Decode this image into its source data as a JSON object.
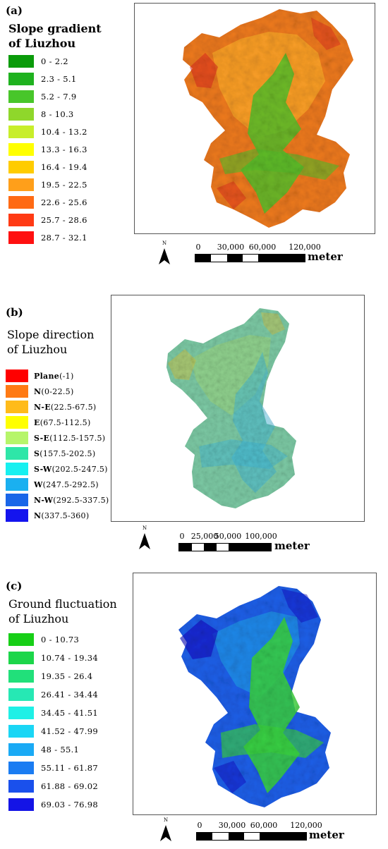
{
  "panels": [
    {
      "label": "(a)",
      "title_line1": "Slope gradient",
      "title_line2": "of Liuzhou",
      "legend": [
        {
          "text": "0 - 2.2",
          "color": "#0a9b0a"
        },
        {
          "text": "2.3 - 5.1",
          "color": "#1fb21f"
        },
        {
          "text": "5.2 - 7.9",
          "color": "#48c62a"
        },
        {
          "text": "8 - 10.3",
          "color": "#8fd72b"
        },
        {
          "text": "10.4 - 13.2",
          "color": "#c8ee2a"
        },
        {
          "text": "13.3 - 16.3",
          "color": "#ffff00"
        },
        {
          "text": "16.4 - 19.4",
          "color": "#ffcc00"
        },
        {
          "text": "19.5 - 22.5",
          "color": "#ff9f1a"
        },
        {
          "text": "22.6 - 25.6",
          "color": "#ff6a14"
        },
        {
          "text": "25.7 - 28.6",
          "color": "#ff3a14"
        },
        {
          "text": "28.7 - 32.1",
          "color": "#ff1010"
        }
      ],
      "map_colors": {
        "base": "#ee7a1e",
        "mid": "#ffae2a",
        "low": "#55c02a",
        "dark": "#e0301c"
      },
      "north": "N",
      "scale_ticks": [
        "0",
        "30,000",
        "60,000",
        "120,000"
      ],
      "scale_unit": "meter"
    },
    {
      "label": "(b)",
      "title_line1": "Slope direction",
      "title_line2": "of Liuzhou",
      "legend": [
        {
          "dir": "Plane",
          "range": "(-1)",
          "color": "#ff0000"
        },
        {
          "dir": "N",
          "range": "(0-22.5)",
          "color": "#ff7a14"
        },
        {
          "dir": "N-E",
          "range": "(22.5-67.5)",
          "color": "#ffbb1a"
        },
        {
          "dir": "E",
          "range": "(67.5-112.5)",
          "color": "#ffff00"
        },
        {
          "dir": "S-E",
          "range": "(112.5-157.5)",
          "color": "#b6f56a"
        },
        {
          "dir": "S",
          "range": "(157.5-202.5)",
          "color": "#2ee6a8"
        },
        {
          "dir": "S-W",
          "range": "(202.5-247.5)",
          "color": "#17f0f0"
        },
        {
          "dir": "W",
          "range": "(247.5-292.5)",
          "color": "#1ab0f0"
        },
        {
          "dir": "N-W",
          "range": "(292.5-337.5)",
          "color": "#1a66e8"
        },
        {
          "dir": "N",
          "range": "(337.5-360)",
          "color": "#1414ee"
        }
      ],
      "map_colors": {
        "base": "#7cc9a4",
        "mid": "#9ed67a",
        "low": "#3fb6d8",
        "dark": "#c9c24a"
      },
      "north": "N",
      "scale_ticks": [
        "0",
        "25,000",
        "50,000",
        "100,000"
      ],
      "scale_unit": "meter"
    },
    {
      "label": "(c)",
      "title_line1": "Ground fluctuation",
      "title_line2": "of Liuzhou",
      "legend": [
        {
          "text": "0 - 10.73",
          "color": "#17cf17"
        },
        {
          "text": "10.74 - 19.34",
          "color": "#1cd64a"
        },
        {
          "text": "19.35 - 26.4",
          "color": "#21e07a"
        },
        {
          "text": "26.41 - 34.44",
          "color": "#26e8b4"
        },
        {
          "text": "34.45 - 41.51",
          "color": "#1ff0e6"
        },
        {
          "text": "41.52 - 47.99",
          "color": "#1ad6f5"
        },
        {
          "text": "48 - 55.1",
          "color": "#1aaaf5"
        },
        {
          "text": "55.11 - 61.87",
          "color": "#1a7cf2"
        },
        {
          "text": "61.88 - 69.02",
          "color": "#1a50ec"
        },
        {
          "text": "69.03 - 76.98",
          "color": "#1414e6"
        }
      ],
      "map_colors": {
        "base": "#1d5fe8",
        "mid": "#23b8e8",
        "low": "#3ad43a",
        "dark": "#1414c8"
      },
      "north": "N",
      "scale_ticks": [
        "0",
        "30,000",
        "60,000",
        "120,000"
      ],
      "scale_unit": "meter"
    }
  ]
}
